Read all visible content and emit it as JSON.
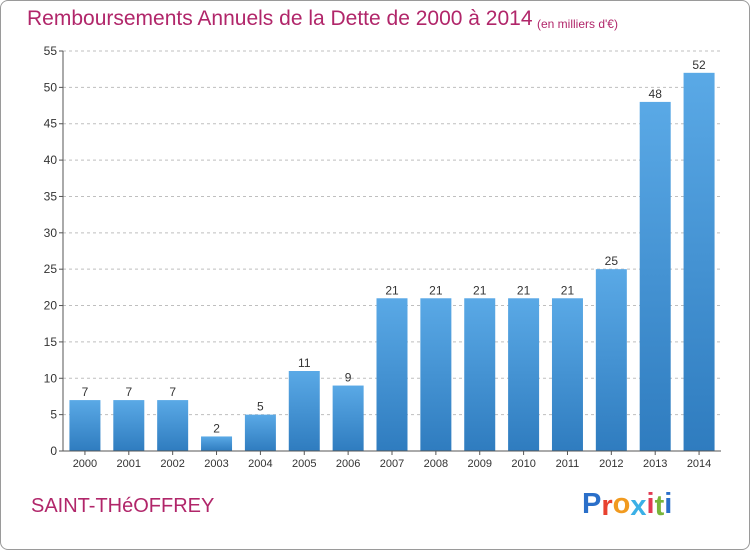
{
  "header": {
    "title": "Remboursements Annuels de la Dette de 2000 à 2014",
    "unit": "(en milliers d'€)"
  },
  "footer": {
    "commune": "SAINT-THéOFFREY",
    "logo_letters": [
      "P",
      "r",
      "o",
      "x",
      "i",
      "t",
      "i"
    ],
    "logo_colors": [
      "#2a6fc9",
      "#e8412f",
      "#f19a1f",
      "#3bb0e6",
      "#e23a52",
      "#78b53a",
      "#2a6fc9"
    ]
  },
  "colors": {
    "bar_top": "#5aa9e6",
    "bar_bottom": "#2f7cbf",
    "grid": "#bfbfbf",
    "axis": "#555555",
    "text": "#333333"
  },
  "chart_data": {
    "type": "bar",
    "categories": [
      "2000",
      "2001",
      "2002",
      "2003",
      "2004",
      "2005",
      "2006",
      "2007",
      "2008",
      "2009",
      "2010",
      "2011",
      "2012",
      "2013",
      "2014"
    ],
    "values": [
      7,
      7,
      7,
      2,
      5,
      11,
      9,
      21,
      21,
      21,
      21,
      21,
      25,
      48,
      52
    ],
    "ylim": [
      0,
      55
    ],
    "yticks": [
      0,
      5,
      10,
      15,
      20,
      25,
      30,
      35,
      40,
      45,
      50,
      55
    ],
    "grid": true,
    "legend": "none"
  }
}
